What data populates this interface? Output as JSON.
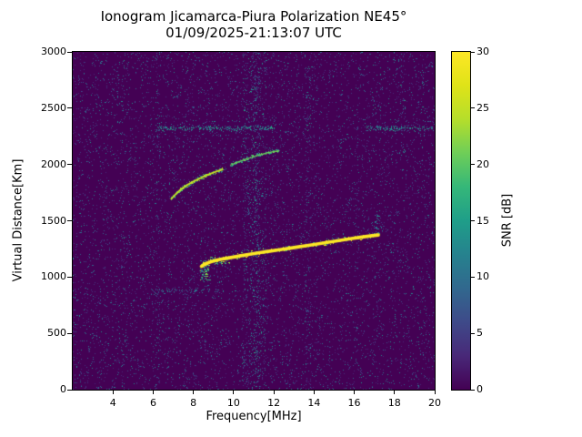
{
  "title": {
    "line1": "Ionogram Jicamarca-Piura Polarization NE45°",
    "line2": "01/09/2025-21:13:07 UTC"
  },
  "chart_data": {
    "type": "heatmap",
    "title": "Ionogram Jicamarca-Piura Polarization NE45°",
    "subtitle": "01/09/2025-21:13:07 UTC",
    "xlabel": "Frequency[MHz]",
    "ylabel": "Virtual Distance[Km]",
    "xlim": [
      2,
      20
    ],
    "ylim": [
      0,
      3000
    ],
    "xticks": [
      4,
      6,
      8,
      10,
      12,
      14,
      16,
      18,
      20
    ],
    "yticks": [
      0,
      500,
      1000,
      1500,
      2000,
      2500,
      3000
    ],
    "grid": false,
    "background_snr": 0,
    "colorbar": {
      "label": "SNR [dB]",
      "vmin": 0,
      "vmax": 30,
      "ticks": [
        0,
        5,
        10,
        15,
        20,
        25,
        30
      ],
      "colormap": "viridis",
      "stops": [
        [
          0.0,
          "#440154"
        ],
        [
          0.1,
          "#482878"
        ],
        [
          0.2,
          "#3e4a89"
        ],
        [
          0.3,
          "#31688e"
        ],
        [
          0.4,
          "#26828e"
        ],
        [
          0.5,
          "#1f9e89"
        ],
        [
          0.6,
          "#35b779"
        ],
        [
          0.7,
          "#6ece58"
        ],
        [
          0.8,
          "#b5de2b"
        ],
        [
          0.9,
          "#dfe318"
        ],
        [
          1.0,
          "#fde725"
        ]
      ]
    },
    "noise": {
      "density": 0.058,
      "snr_min": 3,
      "snr_max": 14
    },
    "rfi_bands": [
      {
        "f0": 6.15,
        "f1": 6.35,
        "density": 0.045
      },
      {
        "f0": 4.45,
        "f1": 4.6,
        "density": 0.03
      },
      {
        "f0": 7.6,
        "f1": 7.85,
        "density": 0.05,
        "km0": 2350,
        "km1": 3000
      },
      {
        "f0": 10.45,
        "f1": 11.6,
        "density": 0.075
      },
      {
        "f0": 10.95,
        "f1": 11.3,
        "density": 0.06
      },
      {
        "f0": 13.55,
        "f1": 13.85,
        "density": 0.055
      },
      {
        "f0": 16.9,
        "f1": 17.1,
        "density": 0.05,
        "km0": 2100,
        "km1": 2600
      },
      {
        "f0": 18.3,
        "f1": 18.55,
        "density": 0.06,
        "km0": 2100,
        "km1": 3000
      },
      {
        "f0": 19.35,
        "f1": 19.5,
        "density": 0.05,
        "km0": 2450,
        "km1": 3000
      }
    ],
    "speckle_rows": [
      {
        "km": 2320,
        "f0": 6.2,
        "f1": 12.0,
        "density": 0.55,
        "snr": [
          8,
          17
        ],
        "thickness_km": 28
      },
      {
        "km": 2320,
        "f0": 16.6,
        "f1": 19.95,
        "density": 0.55,
        "snr": [
          8,
          17
        ],
        "thickness_km": 28
      },
      {
        "km": 880,
        "f0": 5.9,
        "f1": 9.4,
        "density": 0.3,
        "snr": [
          6,
          13
        ],
        "thickness_km": 22
      }
    ],
    "patches": [
      {
        "f0": 8.35,
        "f1": 8.8,
        "km0": 970,
        "km1": 1150,
        "density": 0.38,
        "snr": [
          8,
          24
        ]
      },
      {
        "f0": 8.8,
        "f1": 9.8,
        "km0": 1115,
        "km1": 1175,
        "density": 0.4,
        "snr": [
          12,
          28
        ]
      },
      {
        "f0": 17.0,
        "f1": 17.25,
        "km0": 1380,
        "km1": 1560,
        "density": 0.22,
        "snr": [
          6,
          16
        ]
      }
    ],
    "traces": [
      {
        "name": "main-echo-trace",
        "snr": 30,
        "thickness_km": 30,
        "speckle": {
          "density": 1.4,
          "spread_km": 60,
          "snr_range": [
            12,
            30
          ]
        },
        "points": [
          [
            8.4,
            1095
          ],
          [
            8.6,
            1118
          ],
          [
            8.9,
            1138
          ],
          [
            9.3,
            1156
          ],
          [
            9.8,
            1172
          ],
          [
            10.3,
            1188
          ],
          [
            10.8,
            1203
          ],
          [
            11.3,
            1217
          ],
          [
            11.8,
            1230
          ],
          [
            12.3,
            1243
          ],
          [
            12.8,
            1256
          ],
          [
            13.3,
            1270
          ],
          [
            13.8,
            1284
          ],
          [
            14.3,
            1298
          ],
          [
            14.8,
            1312
          ],
          [
            15.3,
            1326
          ],
          [
            15.8,
            1340
          ],
          [
            16.3,
            1353
          ],
          [
            16.8,
            1365
          ],
          [
            17.2,
            1374
          ]
        ]
      },
      {
        "name": "upper-echo-trace",
        "snr": 25,
        "thickness_km": 16,
        "speckle": {
          "density": 2.6,
          "spread_km": 45,
          "snr_range": [
            10,
            27
          ]
        },
        "points": [
          [
            6.9,
            1695
          ],
          [
            7.15,
            1742
          ],
          [
            7.4,
            1782
          ],
          [
            7.7,
            1818
          ],
          [
            8.0,
            1848
          ],
          [
            8.3,
            1875
          ],
          [
            8.6,
            1900
          ],
          [
            8.9,
            1922
          ],
          [
            9.2,
            1942
          ],
          [
            9.45,
            1955
          ]
        ]
      },
      {
        "name": "upper-echo-trace-faint",
        "snr": 21,
        "thickness_km": 10,
        "speckle": {
          "density": 2.2,
          "spread_km": 40,
          "snr_range": [
            8,
            22
          ]
        },
        "points": [
          [
            9.85,
            1995
          ],
          [
            10.2,
            2020
          ],
          [
            10.55,
            2043
          ],
          [
            10.9,
            2064
          ],
          [
            11.25,
            2083
          ],
          [
            11.6,
            2100
          ],
          [
            11.95,
            2113
          ],
          [
            12.25,
            2122
          ]
        ]
      }
    ]
  }
}
